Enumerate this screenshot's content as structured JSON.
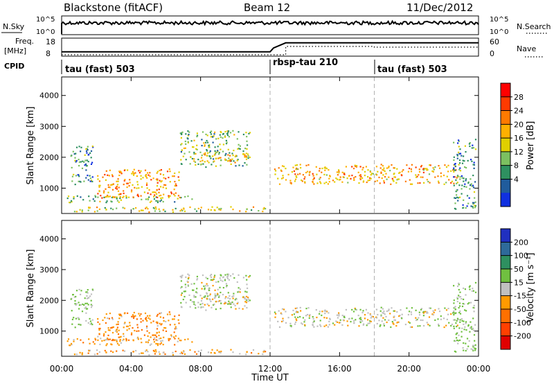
{
  "header": {
    "station": "Blackstone (fitACF)",
    "beam": "Beam 12",
    "date": "11/Dec/2012"
  },
  "top_panels": {
    "nsky_label": "N.Sky",
    "nsky_ticks": [
      "10^5",
      "10^0"
    ],
    "nsearch_label": "N.Search",
    "nsearch_ticks": [
      "10^5",
      "10^0"
    ],
    "freq_label_line1": "Freq.",
    "freq_label_line2": "[MHz]",
    "freq_ticks": [
      "18",
      "8"
    ],
    "nave_label": "Nave",
    "nave_ticks": [
      "60",
      "0"
    ],
    "cpid_label": "CPID"
  },
  "cpid_segments": [
    {
      "start_hour": 0,
      "label": "tau (fast) 503"
    },
    {
      "start_hour": 12,
      "label": "rbsp-tau 210"
    },
    {
      "start_hour": 18,
      "label": "tau (fast) 503"
    }
  ],
  "power_colorbar": {
    "label": "Power [dB]",
    "ticks": [
      "28",
      "24",
      "20",
      "16",
      "12",
      "8",
      "4"
    ],
    "colors": [
      "#ff0000",
      "#ff3a00",
      "#ff7a00",
      "#ffb000",
      "#e0d000",
      "#7cc060",
      "#2e9060",
      "#205c9c",
      "#1030e0"
    ]
  },
  "velocity_colorbar": {
    "label": "Velocity [m s⁻¹]",
    "ticks": [
      "200",
      "100",
      "50",
      "15",
      "-15",
      "-50",
      "-100",
      "-200"
    ],
    "colors": [
      "#2030c0",
      "#2e6a9a",
      "#2e9060",
      "#70c040",
      "#c0c0c0",
      "#ff9a00",
      "#ff7000",
      "#ff4000",
      "#e00000"
    ]
  },
  "chart_data": {
    "type": "heatmap",
    "title": "Blackstone (fitACF) Beam 12 11/Dec/2012",
    "xlabel": "Time UT",
    "ylabel": "Slant Range [km]",
    "x_ticks": [
      "00:00",
      "04:00",
      "08:00",
      "12:00",
      "16:00",
      "20:00",
      "00:00"
    ],
    "xlim_hours": [
      0,
      24
    ],
    "y_ticks": [
      "1000",
      "2000",
      "3000",
      "4000"
    ],
    "ylim_km": [
      180,
      4600
    ],
    "freq_mhz": [
      {
        "hour": 0,
        "value": 10.2
      },
      {
        "hour": 12,
        "value": 10.2
      },
      {
        "hour": 12.2,
        "value": 12.5
      },
      {
        "hour": 12.9,
        "value": 15.6
      },
      {
        "hour": 24,
        "value": 15.6
      }
    ],
    "scatter_regions": [
      {
        "hours": [
          0.3,
          12.0
        ],
        "range_km": [
          250,
          420
        ],
        "power_db": 16,
        "velocity": -30
      },
      {
        "hours": [
          0.3,
          7.5
        ],
        "range_km": [
          560,
          780
        ],
        "power_db": 12,
        "velocity": -30
      },
      {
        "hours": [
          2.0,
          6.8
        ],
        "range_km": [
          700,
          1650
        ],
        "power_db": 22,
        "velocity": -40
      },
      {
        "hours": [
          6.8,
          10.8
        ],
        "range_km": [
          1700,
          2900
        ],
        "power_db": 12,
        "velocity": 10
      },
      {
        "hours": [
          8.0,
          10.8
        ],
        "range_km": [
          1850,
          2150
        ],
        "power_db": 20,
        "velocity": -10
      },
      {
        "hours": [
          0.5,
          1.8
        ],
        "range_km": [
          1100,
          2400
        ],
        "power_db": 8,
        "velocity": 20
      },
      {
        "hours": [
          12.2,
          22.8
        ],
        "range_km": [
          1150,
          1800
        ],
        "power_db": 20,
        "velocity": 0
      },
      {
        "hours": [
          22.5,
          23.8
        ],
        "range_km": [
          300,
          2600
        ],
        "power_db": 8,
        "velocity": 20
      }
    ]
  }
}
